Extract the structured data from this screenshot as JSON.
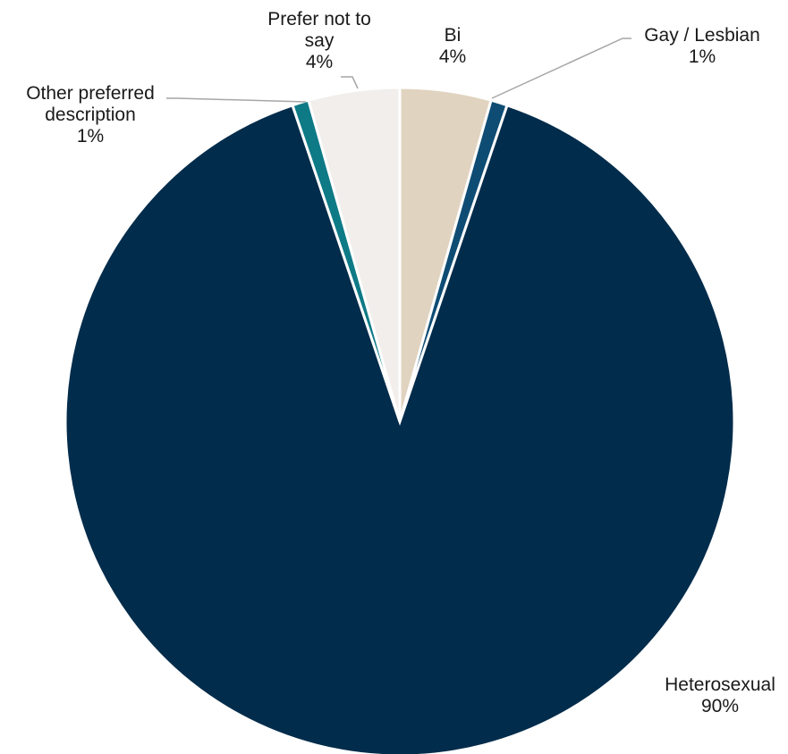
{
  "chart_data": {
    "type": "pie",
    "slices": [
      {
        "label_lines": [
          "Bi"
        ],
        "value_label": "4%",
        "value": 4.4,
        "color": "#e0d3c0"
      },
      {
        "label_lines": [
          "Gay / Lesbian"
        ],
        "value_label": "1%",
        "value": 0.8,
        "color": "#0e4c74"
      },
      {
        "label_lines": [
          "Heterosexual"
        ],
        "value_label": "90%",
        "value": 89.6,
        "color": "#022c4b"
      },
      {
        "label_lines": [
          "Other preferred",
          "description"
        ],
        "value_label": "1%",
        "value": 0.8,
        "color": "#0e7a86"
      },
      {
        "label_lines": [
          "Prefer not to",
          "say"
        ],
        "value_label": "4%",
        "value": 4.4,
        "color": "#f1eeeb"
      }
    ]
  }
}
